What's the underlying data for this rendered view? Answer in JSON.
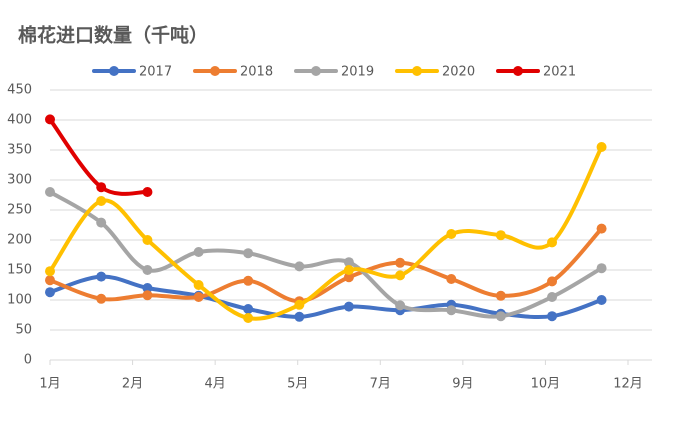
{
  "chart_data": {
    "type": "line",
    "title": "棉花进口数量（千吨）",
    "x": [
      0,
      31,
      59,
      90,
      120,
      151,
      181,
      212,
      243,
      273,
      304,
      334
    ],
    "xlim": [
      0,
      350
    ],
    "xticks": [
      {
        "value": 0,
        "label": "1月"
      },
      {
        "value": 50,
        "label": "2月"
      },
      {
        "value": 100,
        "label": "4月"
      },
      {
        "value": 150,
        "label": "5月"
      },
      {
        "value": 200,
        "label": "7月"
      },
      {
        "value": 250,
        "label": "9月"
      },
      {
        "value": 300,
        "label": "10月"
      },
      {
        "value": 350,
        "label": "12月"
      }
    ],
    "ylim": [
      0,
      450
    ],
    "yticks": [
      0,
      50,
      100,
      150,
      200,
      250,
      300,
      350,
      400,
      450
    ],
    "grid": true,
    "smooth": true,
    "series": [
      {
        "name": "2017",
        "color": "#4472c4",
        "values": [
          113,
          139,
          120,
          107,
          85,
          72,
          89,
          83,
          92,
          77,
          73,
          100
        ]
      },
      {
        "name": "2018",
        "color": "#ed7d31",
        "values": [
          133,
          102,
          108,
          105,
          132,
          98,
          138,
          162,
          135,
          107,
          131,
          219
        ]
      },
      {
        "name": "2019",
        "color": "#a5a5a5",
        "values": [
          280,
          229,
          150,
          180,
          178,
          156,
          163,
          91,
          83,
          73,
          105,
          153
        ]
      },
      {
        "name": "2020",
        "color": "#ffc000",
        "values": [
          148,
          265,
          200,
          125,
          70,
          92,
          150,
          141,
          210,
          208,
          196,
          355
        ]
      },
      {
        "name": "2021",
        "color": "#e00000",
        "values": [
          401,
          288,
          280,
          null,
          null,
          null,
          null,
          null,
          null,
          null,
          null,
          null
        ]
      }
    ]
  }
}
